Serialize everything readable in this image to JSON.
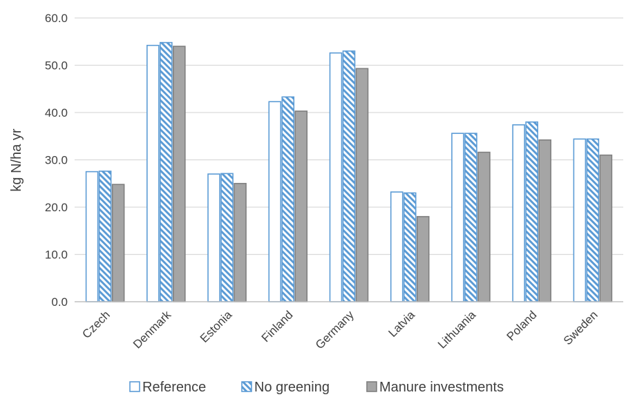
{
  "chart_data": {
    "type": "bar",
    "title": "",
    "xlabel": "",
    "ylabel": "kg N/ha yr",
    "ylim": [
      0,
      60
    ],
    "yticks": [
      "0.0",
      "10.0",
      "20.0",
      "30.0",
      "40.0",
      "50.0",
      "60.0"
    ],
    "grid": "horizontal",
    "legend_position": "bottom",
    "categories": [
      "Czech",
      "Denmark",
      "Estonia",
      "Finland",
      "Germany",
      "Latvia",
      "Lithuania",
      "Poland",
      "Sweden"
    ],
    "series": [
      {
        "name": "Reference",
        "style": "white-outline",
        "color": "#5b9bd5",
        "values": [
          27.5,
          54.2,
          27.0,
          42.3,
          52.6,
          23.2,
          35.6,
          37.4,
          34.4
        ]
      },
      {
        "name": "No greening",
        "style": "blue-hatch",
        "color": "#5b9bd5",
        "values": [
          27.6,
          54.8,
          27.1,
          43.3,
          53.0,
          23.0,
          35.6,
          38.0,
          34.4
        ]
      },
      {
        "name": "Manure investments",
        "style": "gray-fill",
        "color": "#a5a5a5",
        "values": [
          24.8,
          54.0,
          25.0,
          40.3,
          49.3,
          18.0,
          31.6,
          34.2,
          31.0
        ]
      }
    ]
  }
}
